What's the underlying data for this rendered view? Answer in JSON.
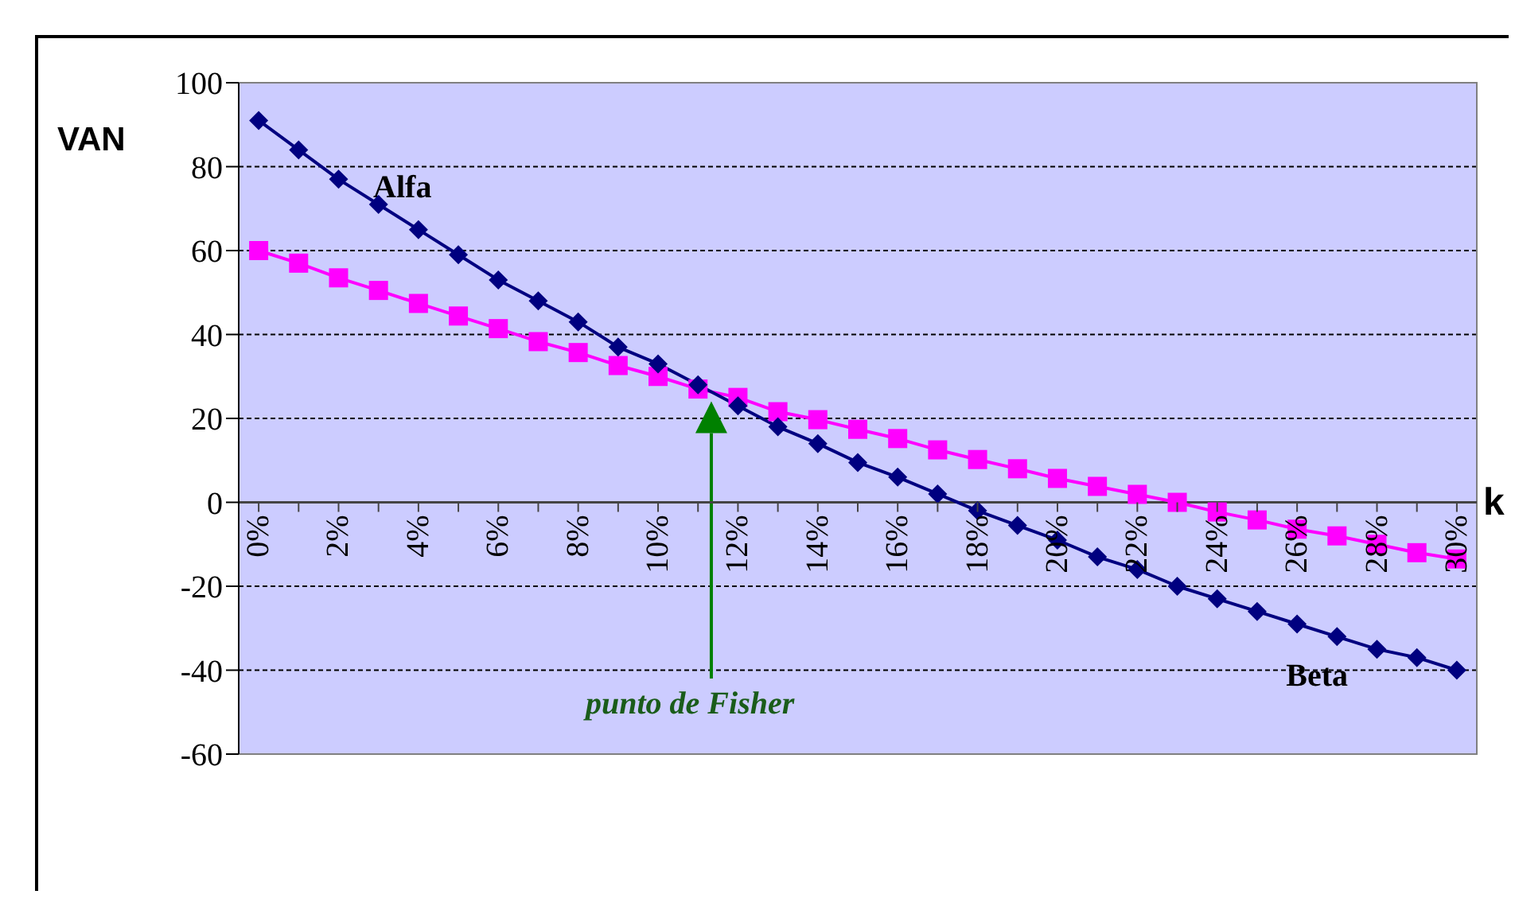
{
  "chart_data": {
    "type": "line",
    "xlabel": "k",
    "ylabel": "VAN",
    "categories": [
      "0%",
      null,
      "2%",
      null,
      "4%",
      null,
      "6%",
      null,
      "8%",
      null,
      "10%",
      null,
      "12%",
      null,
      "14%",
      null,
      "16%",
      null,
      "18%",
      null,
      "20%",
      null,
      "22%",
      null,
      "24%",
      null,
      "26%",
      null,
      "28%",
      null,
      "30%"
    ],
    "series": [
      {
        "color": "#000080",
        "marker": "diamond",
        "values": [
          91,
          84,
          77,
          71,
          65,
          59,
          53,
          48,
          43,
          37,
          33,
          28,
          23,
          18,
          14,
          9.5,
          6,
          2,
          -2,
          -5.5,
          -9,
          -13,
          -16,
          -20,
          -23,
          -26,
          -29,
          -32,
          -35,
          -37,
          -40
        ]
      },
      {
        "color": "#ff00ff",
        "marker": "square",
        "values": [
          60,
          57,
          53.5,
          50.5,
          47.4,
          44.4,
          41.4,
          38.3,
          35.7,
          32.6,
          30,
          27,
          25,
          21.6,
          19.7,
          17.4,
          15.2,
          12.5,
          10.2,
          8,
          5.7,
          3.8,
          1.9,
          0,
          -2.3,
          -4.2,
          -6.4,
          -8,
          -10,
          -12,
          -13.5
        ]
      }
    ],
    "ylim": [
      -60,
      100
    ],
    "yticks": [
      -60,
      -40,
      -20,
      0,
      20,
      40,
      60,
      80,
      100
    ],
    "grid": "y",
    "legend": false,
    "annotations": [
      "Alfa",
      "Beta",
      "punto de Fisher"
    ]
  }
}
